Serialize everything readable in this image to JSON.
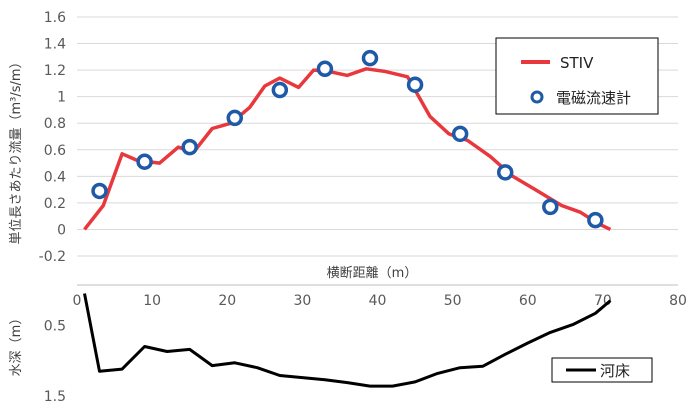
{
  "chart_data": [
    {
      "type": "line",
      "xlabel": "横断距離（m）",
      "ylabel": "単位長さあたり流量（m³/s/m）",
      "xlim": [
        0,
        80
      ],
      "ylim": [
        -0.2,
        1.6
      ],
      "y_ticks": [
        "1.6",
        "1.4",
        "1.2",
        "1",
        "0.8",
        "0.6",
        "0.4",
        "0.2",
        "0",
        "-0.2"
      ],
      "x_ticks": [
        "0",
        "10",
        "20",
        "30",
        "40",
        "50",
        "60",
        "70",
        "80"
      ],
      "legend_position": "top-right",
      "series": [
        {
          "name": "STIV",
          "style": "line",
          "color": "#e8383d",
          "x": [
            1,
            3.5,
            6,
            8,
            11,
            13.5,
            15.5,
            18,
            20.5,
            23,
            25,
            27,
            29.5,
            31.5,
            33.5,
            36,
            38.5,
            41,
            44,
            47,
            49.5,
            52,
            55,
            58,
            61,
            64.5,
            67,
            69.5,
            71
          ],
          "y": [
            0.0,
            0.18,
            0.57,
            0.52,
            0.5,
            0.62,
            0.58,
            0.76,
            0.8,
            0.92,
            1.08,
            1.14,
            1.07,
            1.2,
            1.19,
            1.16,
            1.21,
            1.19,
            1.15,
            0.85,
            0.72,
            0.67,
            0.55,
            0.4,
            0.3,
            0.18,
            0.13,
            0.04,
            0.0
          ]
        },
        {
          "name": "電磁流速計",
          "style": "marker",
          "color": "#1f5aa6",
          "x": [
            3,
            9,
            15,
            21,
            27,
            33,
            39,
            45,
            51,
            57,
            63,
            69
          ],
          "y": [
            0.29,
            0.51,
            0.62,
            0.84,
            1.05,
            1.21,
            1.29,
            1.09,
            0.72,
            0.43,
            0.17,
            0.07
          ]
        }
      ]
    },
    {
      "type": "line",
      "ylabel": "水深（m）",
      "xlim": [
        0,
        80
      ],
      "ylim_top": 0.0,
      "ylim_bottom": 1.5,
      "y_ticks": [
        "0.5",
        "1.5"
      ],
      "legend_position": "bottom-right",
      "series": [
        {
          "name": "河床",
          "color": "#000000",
          "x": [
            1,
            3,
            6,
            9,
            12,
            15,
            18,
            21,
            24,
            27,
            30,
            33,
            36,
            39,
            42,
            45,
            48,
            51,
            54,
            57,
            60,
            63,
            66,
            69,
            71
          ],
          "y": [
            0.05,
            1.15,
            1.12,
            0.8,
            0.87,
            0.84,
            1.07,
            1.03,
            1.1,
            1.21,
            1.24,
            1.27,
            1.31,
            1.36,
            1.36,
            1.3,
            1.18,
            1.1,
            1.08,
            0.91,
            0.75,
            0.6,
            0.49,
            0.33,
            0.15
          ]
        }
      ]
    }
  ]
}
